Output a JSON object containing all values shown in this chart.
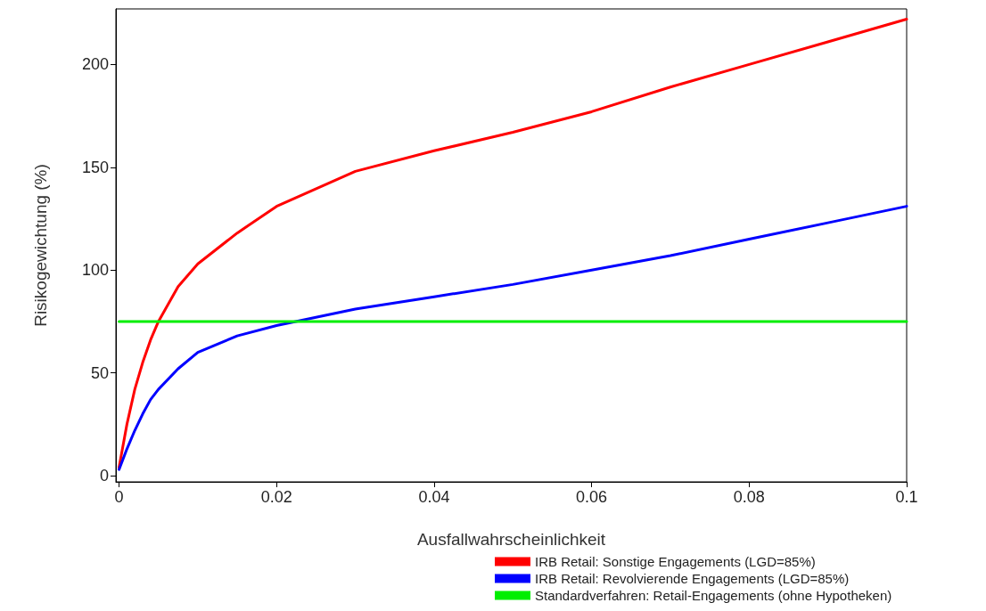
{
  "chart_data": {
    "type": "line",
    "xlabel": "Ausfallwahrscheinlichkeit",
    "ylabel": "Risikogewichtung (%)",
    "xlim": [
      -0.0004,
      0.1
    ],
    "ylim": [
      -3,
      227
    ],
    "xticks": [
      0,
      0.02,
      0.04,
      0.06,
      0.08,
      0.1
    ],
    "yticks": [
      0,
      50,
      100,
      150,
      200
    ],
    "grid": false,
    "legend": "bottom",
    "marker": "none",
    "line_style": "solid",
    "series": [
      {
        "name": "IRB Retail: Sonstige Engagements (LGD=85%)",
        "color": "#ff0000",
        "x": [
          0,
          0.001,
          0.002,
          0.003,
          0.004,
          0.005,
          0.0075,
          0.01,
          0.015,
          0.02,
          0.03,
          0.04,
          0.05,
          0.06,
          0.07,
          0.08,
          0.09,
          0.1
        ],
        "values": [
          4,
          25,
          42,
          55,
          66,
          75,
          92,
          103,
          118,
          131,
          148,
          158,
          167,
          177,
          189,
          200,
          211,
          222
        ]
      },
      {
        "name": "IRB Retail: Revolvierende Engagements (LGD=85%)",
        "color": "#0000ff",
        "x": [
          0,
          0.001,
          0.002,
          0.003,
          0.004,
          0.005,
          0.0075,
          0.01,
          0.015,
          0.02,
          0.03,
          0.04,
          0.05,
          0.06,
          0.07,
          0.08,
          0.09,
          0.1
        ],
        "values": [
          3,
          13,
          22,
          30,
          37,
          42,
          52,
          60,
          68,
          73,
          81,
          87,
          93,
          100,
          107,
          115,
          123,
          131
        ]
      },
      {
        "name": "Standardverfahren: Retail-Engagements (ohne Hypotheken)",
        "color": "#00ee00",
        "x": [
          0,
          0.1
        ],
        "values": [
          75,
          75
        ]
      }
    ]
  }
}
